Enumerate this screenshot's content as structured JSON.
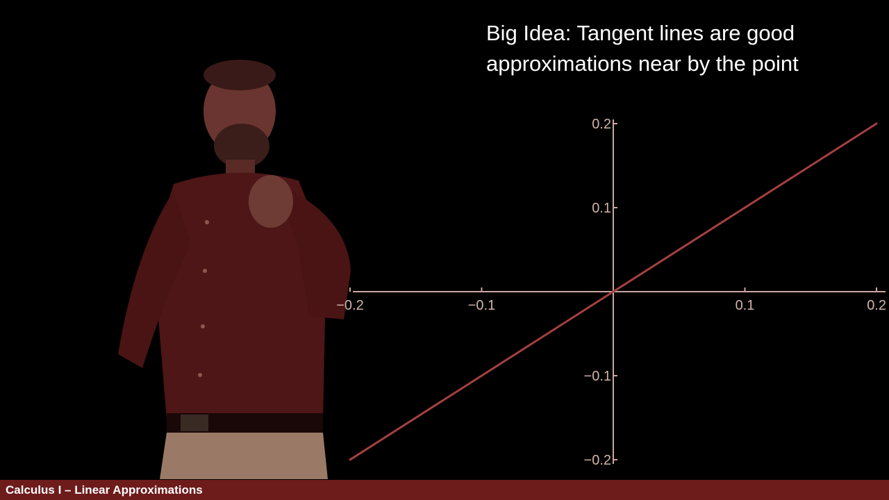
{
  "headline": {
    "line1": "Big Idea: Tangent lines are good",
    "line2": "approximations near by the point"
  },
  "footer": {
    "course_title": "Calculus I – Linear Approximations"
  },
  "colors": {
    "background": "#000000",
    "axis": "#c9a9a0",
    "tick_label": "#d2b4ab",
    "line": "#a64040",
    "footer_bar": "#6e1b1b",
    "headline_text": "#ffffff"
  },
  "chart_data": {
    "type": "line",
    "title": "",
    "xlabel": "",
    "ylabel": "",
    "xlim": [
      -0.2,
      0.2
    ],
    "ylim": [
      -0.2,
      0.2
    ],
    "grid": false,
    "x_ticks": [
      -0.2,
      -0.1,
      0.1,
      0.2
    ],
    "x_tick_labels": [
      "−0.2",
      "−0.1",
      "0.1",
      "0.2"
    ],
    "y_ticks": [
      0.2,
      0.1,
      -0.1,
      -0.2
    ],
    "y_tick_labels": [
      "0.2",
      "0.1",
      "−0.1",
      "−0.2"
    ],
    "series": [
      {
        "x": [
          -0.2,
          0.2
        ],
        "y": [
          -0.2,
          0.2
        ]
      }
    ]
  }
}
